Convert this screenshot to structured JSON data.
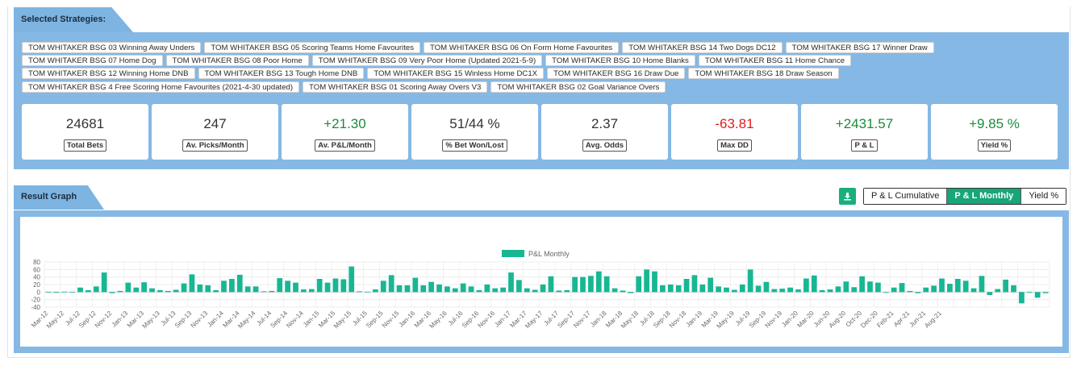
{
  "sections": {
    "strategies_title": "Selected Strategies:",
    "graph_title": "Result Graph"
  },
  "strategy_rows": [
    [
      "TOM WHITAKER BSG 03 Winning Away Unders",
      "TOM WHITAKER BSG 05 Scoring Teams Home Favourites",
      "TOM WHITAKER BSG 06 On Form Home Favourites",
      "TOM WHITAKER BSG 14 Two Dogs DC12",
      "TOM WHITAKER BSG 17 Winner Draw"
    ],
    [
      "TOM WHITAKER BSG 07 Home Dog",
      "TOM WHITAKER BSG 08 Poor Home",
      "TOM WHITAKER BSG 09 Very Poor Home (Updated 2021-5-9)",
      "TOM WHITAKER BSG 10 Home Blanks",
      "TOM WHITAKER BSG 11 Home Chance"
    ],
    [
      "TOM WHITAKER BSG 12 Winning Home DNB",
      "TOM WHITAKER BSG 13 Tough Home DNB",
      "TOM WHITAKER BSG 15 Winless Home DC1X",
      "TOM WHITAKER BSG 16 Draw Due",
      "TOM WHITAKER BSG 18 Draw Season"
    ],
    [
      "TOM WHITAKER BSG 4 Free Scoring Home Favourites (2021-4-30 updated)",
      "TOM WHITAKER BSG 01 Scoring Away Overs V3",
      "TOM WHITAKER BSG 02 Goal Variance Overs"
    ]
  ],
  "stats": [
    {
      "value": "24681",
      "label": "Total Bets",
      "tone": "dark"
    },
    {
      "value": "247",
      "label": "Av. Picks/Month",
      "tone": "dark"
    },
    {
      "value": "+21.30",
      "label": "Av. P&L/Month",
      "tone": "green"
    },
    {
      "value": "51/44 %",
      "label": "% Bet Won/Lost",
      "tone": "dark"
    },
    {
      "value": "2.37",
      "label": "Avg. Odds",
      "tone": "dark"
    },
    {
      "value": "-63.81",
      "label": "Max DD",
      "tone": "red"
    },
    {
      "value": "+2431.57",
      "label": "P & L",
      "tone": "green"
    },
    {
      "value": "+9.85 %",
      "label": "Yield %",
      "tone": "green"
    }
  ],
  "graph_toggle": {
    "download_icon": "download-icon",
    "options": [
      "P & L Cumulative",
      "P & L Monthly",
      "Yield %"
    ],
    "active": "P & L Monthly"
  },
  "colors": {
    "panel": "#85b8e4",
    "bar": "#17b794",
    "green": "#1a8c3c",
    "red": "#e01c1c"
  },
  "chart_data": {
    "type": "bar",
    "legend": "P&L Monthly",
    "grid": true,
    "ylim": [
      -40,
      80
    ],
    "yticks": [
      -40,
      -20,
      0,
      20,
      40,
      60,
      80
    ],
    "xtick_labels": [
      "Mar-12",
      "May-12",
      "Jul-12",
      "Sep-12",
      "Nov-12",
      "Jan-13",
      "Mar-13",
      "May-13",
      "Jul-13",
      "Sep-13",
      "Nov-13",
      "Jan-14",
      "Mar-14",
      "May-14",
      "Jul-14",
      "Sep-14",
      "Nov-14",
      "Jan-15",
      "Mar-15",
      "May-15",
      "Jul-15",
      "Sep-15",
      "Nov-15",
      "Jan-16",
      "Mar-16",
      "May-16",
      "Jul-16",
      "Sep-16",
      "Nov-16",
      "Jan-17",
      "Mar-17",
      "May-17",
      "Jul-17",
      "Sep-17",
      "Nov-17",
      "Jan-18",
      "Mar-18",
      "May-18",
      "Jul-18",
      "Sep-18",
      "Nov-18",
      "Jan-19",
      "Mar-19",
      "May-19",
      "Jul-19",
      "Sep-19",
      "Nov-19",
      "Jan-20",
      "Mar-20",
      "Jun-20",
      "Aug-20",
      "Oct-20",
      "Dec-20",
      "Feb-21",
      "Apr-21",
      "Jun-21",
      "Aug-21"
    ],
    "categories_start": "Mar-12",
    "values": [
      0,
      -2,
      1,
      -1,
      12,
      5,
      15,
      52,
      -3,
      3,
      25,
      12,
      26,
      10,
      5,
      3,
      6,
      23,
      47,
      20,
      18,
      5,
      30,
      35,
      46,
      15,
      15,
      2,
      3,
      37,
      30,
      25,
      7,
      8,
      35,
      25,
      36,
      34,
      68,
      2,
      1,
      7,
      30,
      45,
      18,
      18,
      38,
      18,
      27,
      20,
      15,
      10,
      23,
      15,
      5,
      20,
      10,
      12,
      52,
      32,
      10,
      6,
      20,
      42,
      4,
      5,
      40,
      40,
      43,
      55,
      42,
      10,
      4,
      -3,
      42,
      60,
      55,
      18,
      20,
      18,
      35,
      45,
      20,
      38,
      15,
      12,
      6,
      20,
      60,
      17,
      27,
      8,
      9,
      12,
      7,
      36,
      44,
      5,
      7,
      15,
      28,
      13,
      42,
      28,
      25,
      -2,
      12,
      24,
      3,
      -3,
      12,
      17,
      36,
      22,
      35,
      30,
      10,
      43,
      -8,
      8,
      33,
      18,
      -30,
      -2,
      -15,
      -3
    ],
    "xlabel": "",
    "ylabel": ""
  }
}
